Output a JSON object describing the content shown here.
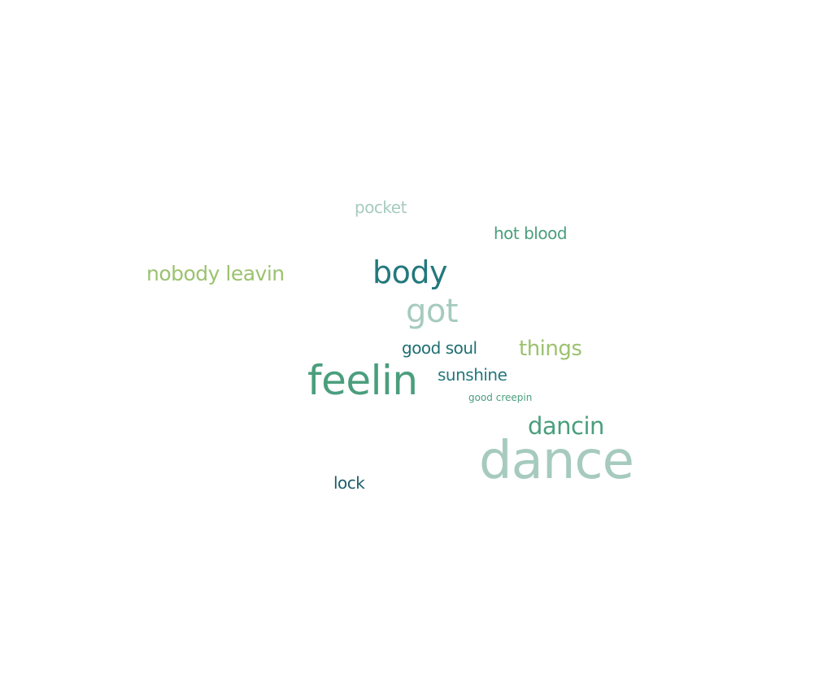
{
  "colors": {
    "pale_sage": "#a6cbbe",
    "jade": "#4a9e7d",
    "lime_green": "#9cc26f",
    "teal": "#23787d",
    "deep_teal": "#1c5e6b"
  },
  "words": [
    {
      "key": "pocket",
      "text": "pocket",
      "color": "#a6cbbe"
    },
    {
      "key": "hot_blood",
      "text": "hot blood",
      "color": "#4a9e7d"
    },
    {
      "key": "nobody_leavin",
      "text": "nobody leavin",
      "color": "#9cc26f"
    },
    {
      "key": "body",
      "text": "body",
      "color": "#23787d"
    },
    {
      "key": "got",
      "text": "got",
      "color": "#a6cbbe"
    },
    {
      "key": "good_soul",
      "text": "good soul",
      "color": "#1f6f72"
    },
    {
      "key": "things",
      "text": "things",
      "color": "#9cc26f"
    },
    {
      "key": "feelin",
      "text": "feelin",
      "color": "#4a9e7d"
    },
    {
      "key": "sunshine",
      "text": "sunshine",
      "color": "#23787d"
    },
    {
      "key": "good_creepin",
      "text": "good creepin",
      "color": "#4a9e7d"
    },
    {
      "key": "dancin",
      "text": "dancin",
      "color": "#4a9e7d"
    },
    {
      "key": "dance",
      "text": "dance",
      "color": "#a6cbbe"
    },
    {
      "key": "lock",
      "text": "lock",
      "color": "#1c5e6b"
    }
  ]
}
